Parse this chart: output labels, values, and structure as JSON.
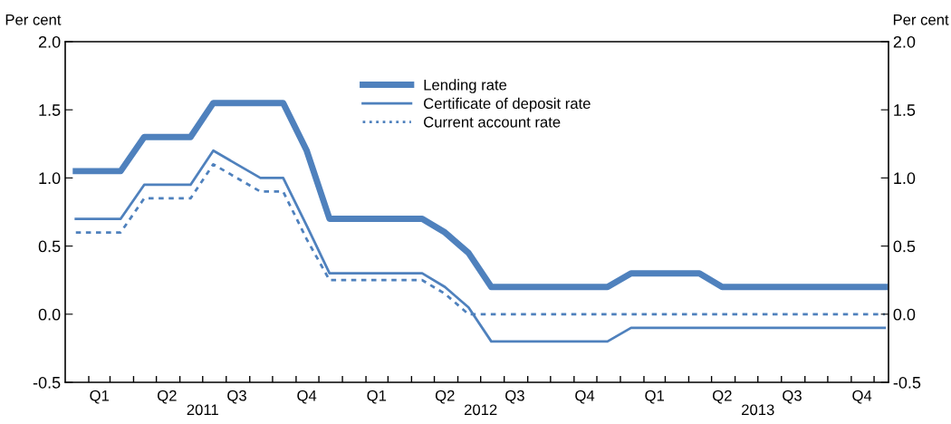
{
  "chart_data": {
    "type": "line",
    "x": [
      "2011-01-15",
      "2011-02-15",
      "2011-03-15",
      "2011-04-15",
      "2011-05-15",
      "2011-06-15",
      "2011-07-15",
      "2011-08-15",
      "2011-09-15",
      "2011-10-15",
      "2011-11-15",
      "2011-12-15",
      "2012-01-15",
      "2012-02-15",
      "2012-03-15",
      "2012-04-15",
      "2012-05-15",
      "2012-06-15",
      "2012-07-15",
      "2012-08-15",
      "2012-09-15",
      "2012-10-15",
      "2012-11-15",
      "2012-12-15",
      "2013-01-15",
      "2013-02-15",
      "2013-03-15",
      "2013-04-15",
      "2013-05-15",
      "2013-06-15",
      "2013-07-15",
      "2013-08-15",
      "2013-09-15",
      "2013-10-15",
      "2013-11-15",
      "2013-12-15"
    ],
    "series": [
      {
        "name": "Lending rate",
        "color": "#4f81bd",
        "line_style": "solid",
        "values": [
          1.05,
          1.05,
          1.05,
          1.3,
          1.3,
          1.3,
          1.55,
          1.55,
          1.55,
          1.55,
          1.2,
          0.7,
          0.7,
          0.7,
          0.7,
          0.7,
          0.6,
          0.45,
          0.2,
          0.2,
          0.2,
          0.2,
          0.2,
          0.2,
          0.3,
          0.3,
          0.3,
          0.3,
          0.2,
          0.2,
          0.2,
          0.2,
          0.2,
          0.2,
          0.2,
          0.2
        ]
      },
      {
        "name": "Certificate of deposit rate",
        "color": "#4f81bd",
        "line_style": "solid",
        "values": [
          0.7,
          0.7,
          0.7,
          0.95,
          0.95,
          0.95,
          1.2,
          1.1,
          1.0,
          1.0,
          0.65,
          0.3,
          0.3,
          0.3,
          0.3,
          0.3,
          0.2,
          0.05,
          -0.2,
          -0.2,
          -0.2,
          -0.2,
          -0.2,
          -0.2,
          -0.1,
          -0.1,
          -0.1,
          -0.1,
          -0.1,
          -0.1,
          -0.1,
          -0.1,
          -0.1,
          -0.1,
          -0.1,
          -0.1
        ]
      },
      {
        "name": "Current account rate",
        "color": "#4f81bd",
        "line_style": "dotted",
        "values": [
          0.6,
          0.6,
          0.6,
          0.85,
          0.85,
          0.85,
          1.1,
          1.0,
          0.9,
          0.9,
          0.55,
          0.25,
          0.25,
          0.25,
          0.25,
          0.25,
          0.15,
          0.0,
          0.0,
          0.0,
          0.0,
          0.0,
          0.0,
          0.0,
          0.0,
          0.0,
          0.0,
          0.0,
          0.0,
          0.0,
          0.0,
          0.0,
          0.0,
          0.0,
          0.0,
          0.0
        ]
      }
    ],
    "ylabel": "Per cent",
    "y2label": "Per cent",
    "ylim": [
      -0.5,
      2.0
    ],
    "yticks": [
      {
        "value": -0.5,
        "label": "-0.5"
      },
      {
        "value": 0,
        "label": "0.0"
      },
      {
        "value": 0.5,
        "label": "0.5"
      },
      {
        "value": 1,
        "label": "1.0"
      },
      {
        "value": 1.5,
        "label": "1.5"
      },
      {
        "value": 2,
        "label": "2.0"
      }
    ],
    "y2lim": [
      -0.5,
      2.0
    ],
    "y2ticks": [
      {
        "value": -0.5,
        "label": "-0.5"
      },
      {
        "value": 0,
        "label": "0.0"
      },
      {
        "value": 0.5,
        "label": "0.5"
      },
      {
        "value": 1,
        "label": "1.0"
      },
      {
        "value": 1.5,
        "label": "1.5"
      },
      {
        "value": 2,
        "label": "2.0"
      }
    ],
    "xlim": [
      "2011-01-01",
      "2013-12-20"
    ],
    "xticks": [
      {
        "value": "2011-02-01",
        "label": null
      },
      {
        "value": "2011-03-01",
        "label": null
      },
      {
        "value": "2011-04-01",
        "label": null
      },
      {
        "value": "2011-05-01",
        "label": null
      },
      {
        "value": "2011-06-01",
        "label": null
      },
      {
        "value": "2011-07-01",
        "label": null
      },
      {
        "value": "2011-08-01",
        "label": null
      },
      {
        "value": "2011-09-01",
        "label": null
      },
      {
        "value": "2011-10-01",
        "label": null
      },
      {
        "value": "2011-11-01",
        "label": null
      },
      {
        "value": "2011-12-01",
        "label": null
      },
      {
        "value": "2012-01-01",
        "label": null
      },
      {
        "value": "2012-02-01",
        "label": null
      },
      {
        "value": "2012-03-01",
        "label": null
      },
      {
        "value": "2012-04-01",
        "label": null
      },
      {
        "value": "2012-05-01",
        "label": null
      },
      {
        "value": "2012-06-01",
        "label": null
      },
      {
        "value": "2012-07-01",
        "label": null
      },
      {
        "value": "2012-08-01",
        "label": null
      },
      {
        "value": "2012-09-01",
        "label": null
      },
      {
        "value": "2012-10-01",
        "label": null
      },
      {
        "value": "2012-11-01",
        "label": null
      },
      {
        "value": "2012-12-01",
        "label": null
      },
      {
        "value": "2013-01-01",
        "label": null
      },
      {
        "value": "2013-02-01",
        "label": null
      },
      {
        "value": "2013-03-01",
        "label": null
      },
      {
        "value": "2013-04-01",
        "label": null
      },
      {
        "value": "2013-05-01",
        "label": null
      },
      {
        "value": "2013-06-01",
        "label": null
      },
      {
        "value": "2013-07-01",
        "label": null
      },
      {
        "value": "2013-08-01",
        "label": null
      },
      {
        "value": "2013-09-01",
        "label": null
      },
      {
        "value": "2013-10-01",
        "label": null
      },
      {
        "value": "2013-11-01",
        "label": null
      },
      {
        "value": "2013-12-01",
        "label": null
      },
      {
        "value": "2011-02-15",
        "label": "Q1"
      },
      {
        "value": "2011-05-15",
        "label": "Q2"
      },
      {
        "value": "2011-08-15",
        "label": "Q3"
      },
      {
        "value": "2011-11-15",
        "label": "Q4"
      },
      {
        "value": "2012-02-15",
        "label": "Q1"
      },
      {
        "value": "2012-05-15",
        "label": "Q2"
      },
      {
        "value": "2012-08-15",
        "label": "Q3"
      },
      {
        "value": "2012-11-15",
        "label": "Q4"
      },
      {
        "value": "2013-02-15",
        "label": "Q1"
      },
      {
        "value": "2013-05-15",
        "label": "Q2"
      },
      {
        "value": "2013-08-15",
        "label": "Q3"
      },
      {
        "value": "2013-11-15",
        "label": "Q4"
      }
    ],
    "x2lim": [
      "2011-01-01",
      "2013-12-20"
    ],
    "x2ticks": [
      {
        "value": "2011-07-01",
        "label": "2011"
      },
      {
        "value": "2012-07-01",
        "label": "2012"
      },
      {
        "value": "2013-07-01",
        "label": "2013"
      }
    ],
    "legend": "top",
    "grid": false
  }
}
